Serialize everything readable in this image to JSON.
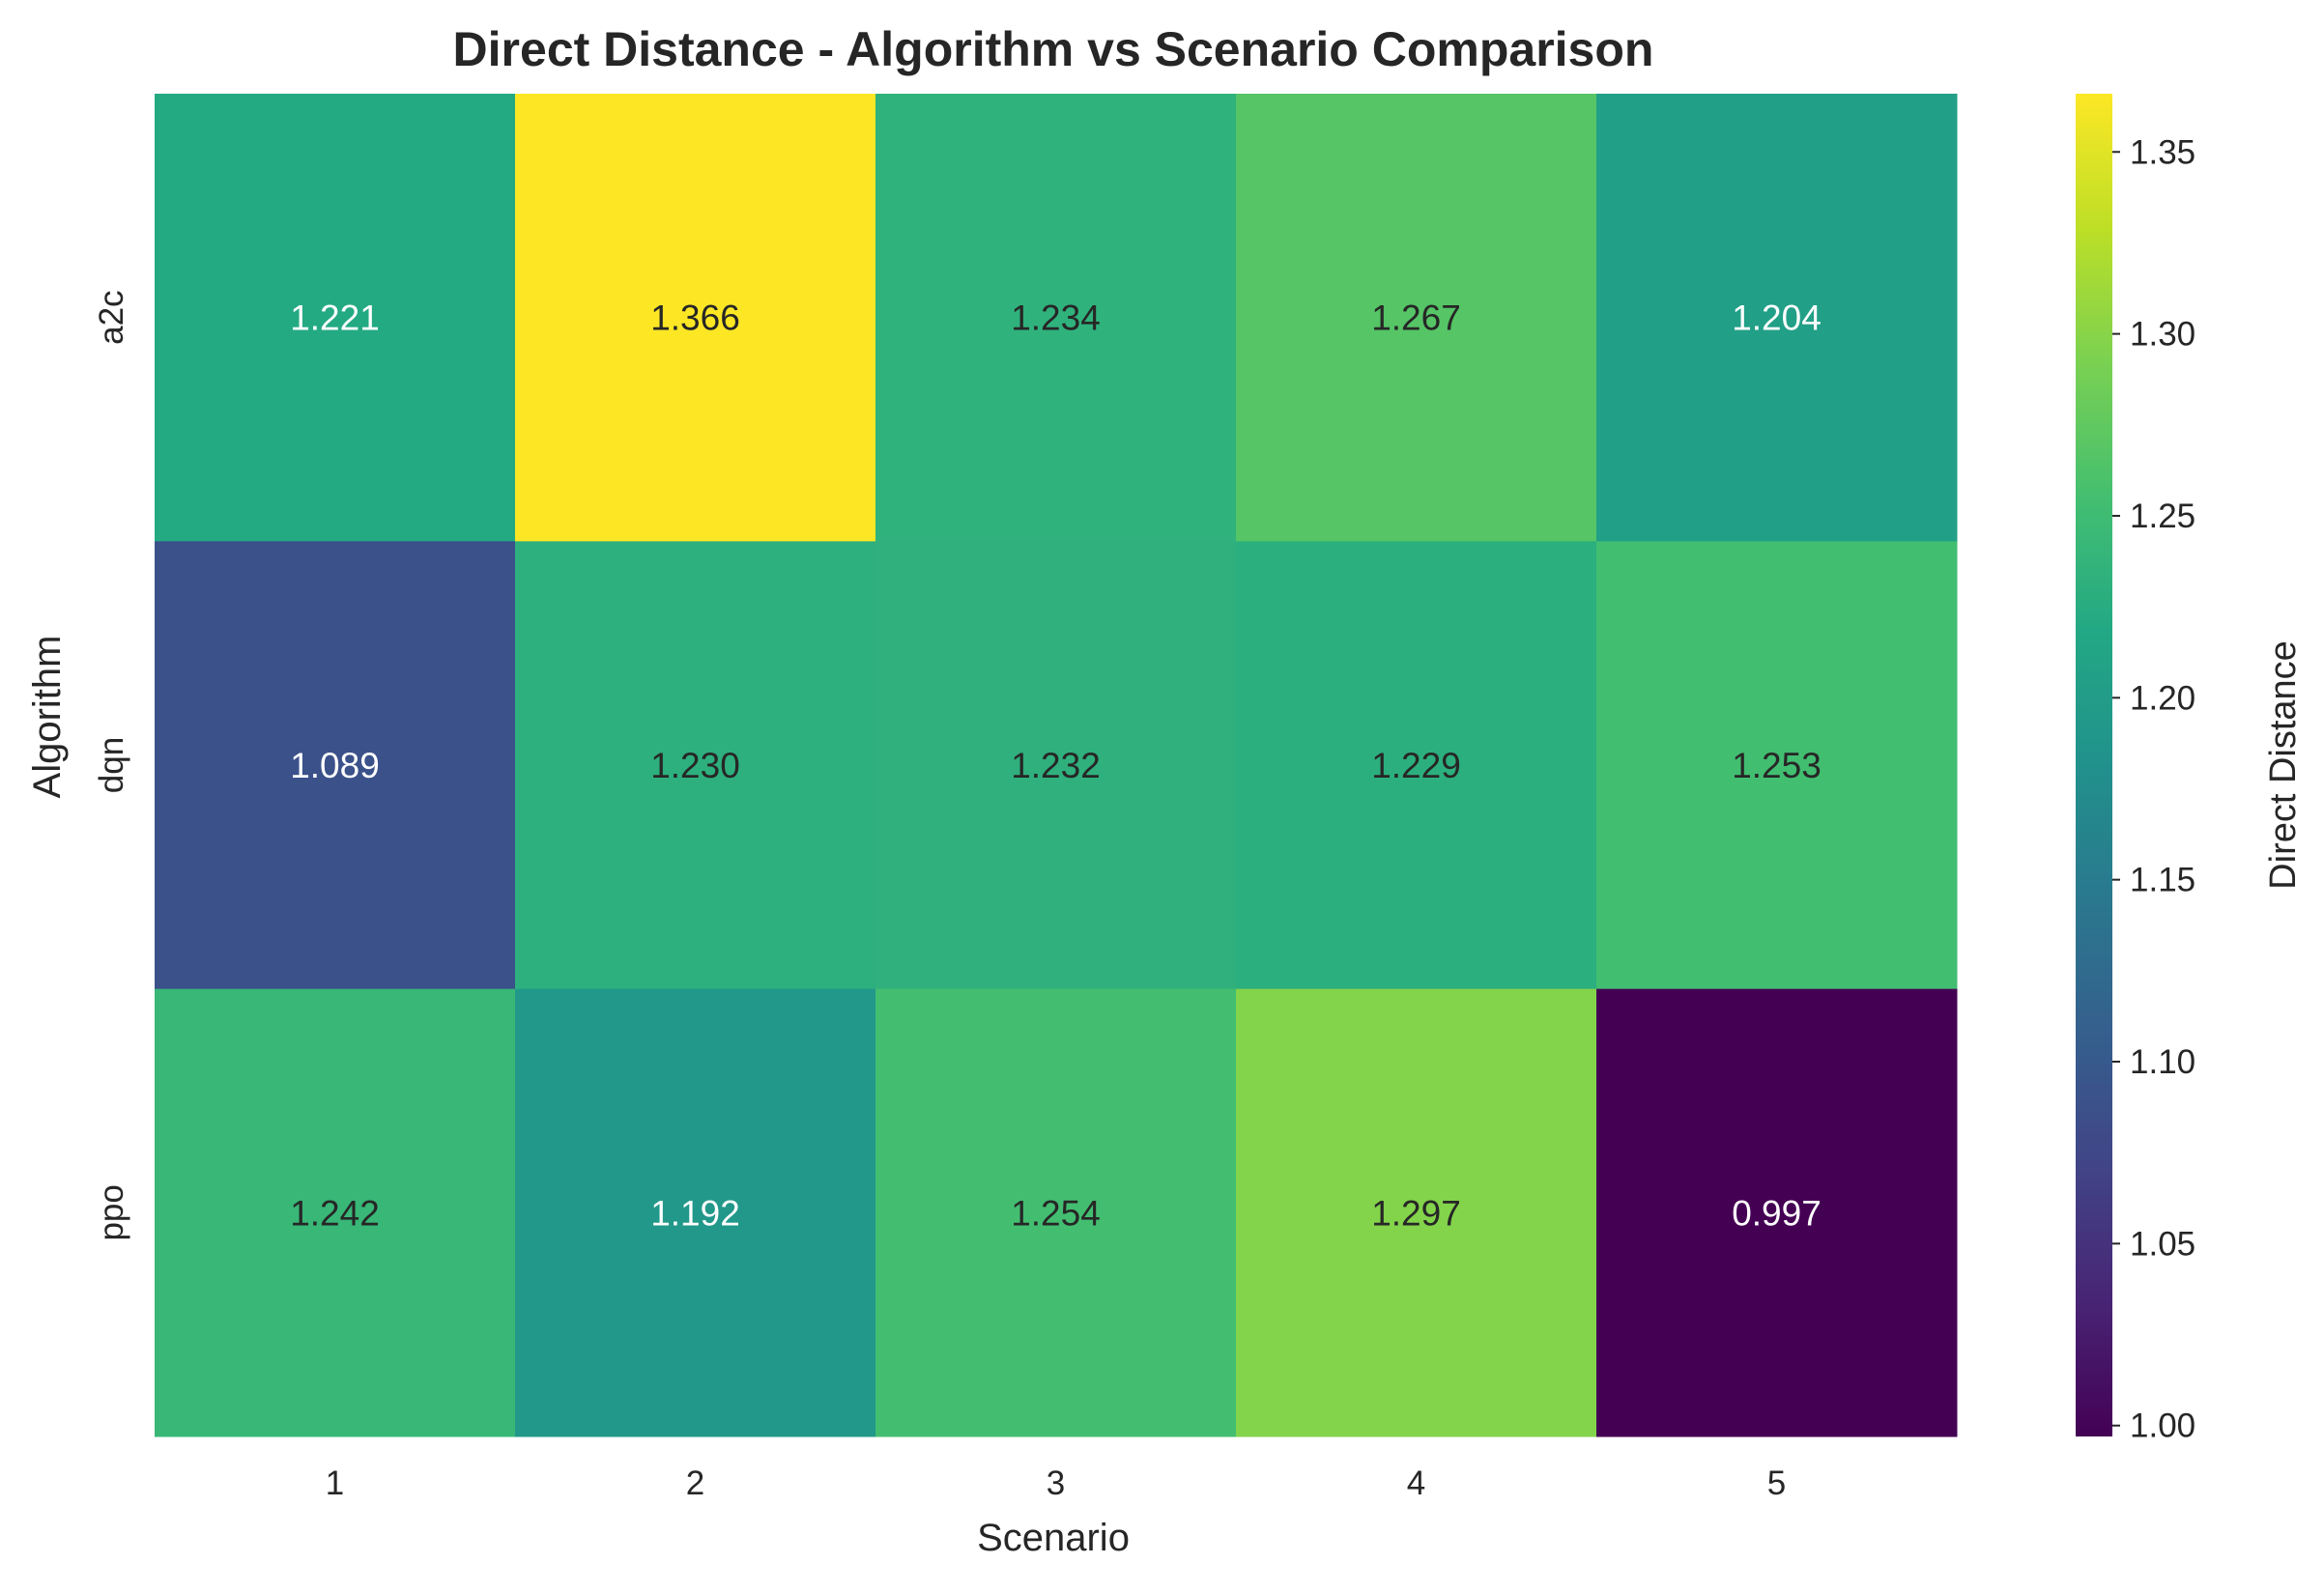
{
  "chart_data": {
    "type": "heatmap",
    "title": "Direct Distance - Algorithm vs Scenario Comparison",
    "xlabel": "Scenario",
    "ylabel": "Algorithm",
    "colorbar_label": "Direct Distance",
    "x_categories": [
      "1",
      "2",
      "3",
      "4",
      "5"
    ],
    "y_categories": [
      "a2c",
      "dqn",
      "ppo"
    ],
    "values": [
      [
        1.221,
        1.366,
        1.234,
        1.267,
        1.204
      ],
      [
        1.089,
        1.23,
        1.232,
        1.229,
        1.253
      ],
      [
        1.242,
        1.192,
        1.254,
        1.297,
        0.997
      ]
    ],
    "value_labels": [
      [
        "1.221",
        "1.366",
        "1.234",
        "1.267",
        "1.204"
      ],
      [
        "1.089",
        "1.230",
        "1.232",
        "1.229",
        "1.253"
      ],
      [
        "1.242",
        "1.192",
        "1.254",
        "1.297",
        "0.997"
      ]
    ],
    "colormap": "viridis",
    "vmin": 0.997,
    "vmax": 1.366,
    "colorbar_ticks": [
      1.0,
      1.05,
      1.1,
      1.15,
      1.2,
      1.25,
      1.3,
      1.35
    ],
    "colorbar_tick_labels": [
      "1.00",
      "1.05",
      "1.10",
      "1.15",
      "1.20",
      "1.25",
      "1.30",
      "1.35"
    ],
    "light_text_color": "#ffffff",
    "dark_text_color": "#262626"
  }
}
